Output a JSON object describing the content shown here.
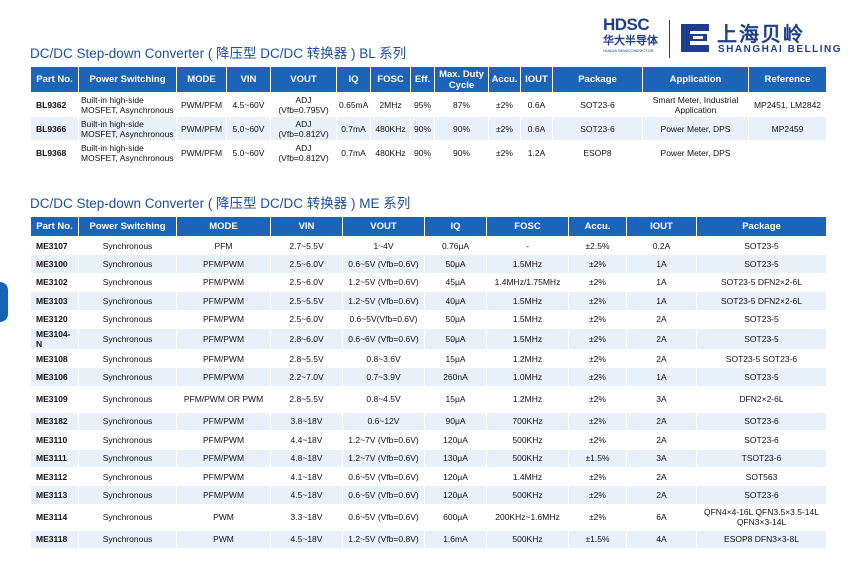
{
  "logo": {
    "hdsc": "HDSC",
    "hdsc_cn": "华大半导体",
    "hdsc_en": "HUADA SEMICONDUCTOR",
    "belling_cn": "上海贝岭",
    "belling_en": "SHANGHAI BELLING"
  },
  "section1": {
    "title": "DC/DC Step-down Converter ( 降压型 DC/DC 转换器 ) BL 系列",
    "headers": [
      "Part No.",
      "Power Switching",
      "MODE",
      "VIN",
      "VOUT",
      "IQ",
      "FOSC",
      "Eff.",
      "Max. Duty Cycle",
      "Accu.",
      "IOUT",
      "Package",
      "Application",
      "Reference"
    ],
    "rows": [
      [
        "BL9362",
        "Built-in high-side MOSFET, Asynchronous",
        "PWM/PFM",
        "4.5~60V",
        "ADJ (Vfb=0.795V)",
        "0.65mA",
        "2MHz",
        "95%",
        "87%",
        "±2%",
        "0.6A",
        "SOT23-6",
        "Smart Meter, Industrial Application",
        "MP2451, LM2842"
      ],
      [
        "BL9366",
        "Built-in high-side MOSFET, Asynchronous",
        "PWM/PFM",
        "5.0~60V",
        "ADJ (Vfb=0.812V)",
        "0.7mA",
        "480KHz",
        "90%",
        "90%",
        "±2%",
        "0.6A",
        "SOT23-6",
        "Power Meter, DPS",
        "MP2459"
      ],
      [
        "BL9368",
        "Built-in high-side MOSFET, Asynchronous",
        "PWM/PFM",
        "5.0~60V",
        "ADJ (Vfb=0.812V)",
        "0.7mA",
        "480KHz",
        "90%",
        "90%",
        "±2%",
        "1.2A",
        "ESOP8",
        "Power Meter, DPS",
        ""
      ]
    ]
  },
  "section2": {
    "title": "DC/DC Step-down Converter ( 降压型 DC/DC 转换器 ) ME 系列",
    "headers": [
      "Part No.",
      "Power Switching",
      "MODE",
      "VIN",
      "VOUT",
      "IQ",
      "FOSC",
      "Accu.",
      "IOUT",
      "Package"
    ],
    "rows": [
      [
        "ME3107",
        "Synchronous",
        "PFM",
        "2.7~5.5V",
        "1~4V",
        "0.76μA",
        "-",
        "±2.5%",
        "0.2A",
        "SOT23-5"
      ],
      [
        "ME3100",
        "Synchronous",
        "PFM/PWM",
        "2.5~6.0V",
        "0.6~5V (Vfb=0.6V)",
        "50μA",
        "1.5MHz",
        "±2%",
        "1A",
        "SOT23-5"
      ],
      [
        "ME3102",
        "Synchronous",
        "PFM/PWM",
        "2.5~6.0V",
        "1.2~5V (Vfb=0.6V)",
        "45μA",
        "1.4MHz/1.75MHz",
        "±2%",
        "1A",
        "SOT23-5 DFN2×2-6L"
      ],
      [
        "ME3103",
        "Synchronous",
        "PFM/PWM",
        "2.5~5.5V",
        "1.2~5V (Vfb=0.6V)",
        "40μA",
        "1.5MHz",
        "±2%",
        "1A",
        "SOT23-5 DFN2×2-6L"
      ],
      [
        "ME3120",
        "Synchronous",
        "PFM/PWM",
        "2.5~6.0V",
        "0.6~5V(Vfb=0.6V)",
        "50μA",
        "1.5MHz",
        "±2%",
        "2A",
        "SOT23-5"
      ],
      [
        "ME3104-N",
        "Synchronous",
        "PFM/PWM",
        "2.8~6.0V",
        "0.6~6V (Vfb=0.6V)",
        "50μA",
        "1.5MHz",
        "±2%",
        "2A",
        "SOT23-5"
      ],
      [
        "ME3108",
        "Synchronous",
        "PFM/PWM",
        "2.8~5.5V",
        "0.8~3.6V",
        "15μA",
        "1.2MHz",
        "±2%",
        "2A",
        "SOT23-5 SOT23-6"
      ],
      [
        "ME3106",
        "Synchronous",
        "PFM/PWM",
        "2.2~7.0V",
        "0.7~3.9V",
        "260nA",
        "1.0MHz",
        "±2%",
        "1A",
        "SOT23-5"
      ],
      [
        "ME3109",
        "Synchronous",
        "PFM/PWM OR PWM",
        "2.8~5.5V",
        "0.8~4.5V",
        "15μA",
        "1.2MHz",
        "±2%",
        "3A",
        "DFN2×2-6L"
      ],
      [
        "ME3182",
        "Synchronous",
        "PFM/PWM",
        "3.8~18V",
        "0.6~12V",
        "90μA",
        "700KHz",
        "±2%",
        "2A",
        "SOT23-6"
      ],
      [
        "ME3110",
        "Synchronous",
        "PFM/PWM",
        "4.4~18V",
        "1.2~7V (Vfb=0.6V)",
        "120μA",
        "500KHz",
        "±2%",
        "2A",
        "SOT23-6"
      ],
      [
        "ME3111",
        "Synchronous",
        "PFM/PWM",
        "4.8~18V",
        "1.2~7V (Vfb=0.6V)",
        "130μA",
        "500KHz",
        "±1.5%",
        "3A",
        "TSOT23-6"
      ],
      [
        "ME3112",
        "Synchronous",
        "PFM/PWM",
        "4.1~18V",
        "0.6~5V (Vfb=0.6V)",
        "120μA",
        "1.4MHz",
        "±2%",
        "2A",
        "SOT563"
      ],
      [
        "ME3113",
        "Synchronous",
        "PFM/PWM",
        "4.5~18V",
        "0.6~5V (Vfb=0.6V)",
        "120μA",
        "500KHz",
        "±2%",
        "2A",
        "SOT23-6"
      ],
      [
        "ME3114",
        "Synchronous",
        "PWM",
        "3.3~18V",
        "0.6~5V (Vfb=0.6V)",
        "600μA",
        "200KHz~1.6MHz",
        "±2%",
        "6A",
        "QFN4×4-16L QFN3.5×3.5-14L QFN3×3-14L"
      ],
      [
        "ME3118",
        "Synchronous",
        "PWM",
        "4.5~18V",
        "1.2~5V (Vfb=0.8V)",
        "1.6mA",
        "500KHz",
        "±1.5%",
        "4A",
        "ESOP8 DFN3×3-8L"
      ]
    ]
  },
  "colors": {
    "header_bg": "#1c64b8",
    "row_alt": "#e8f1fa",
    "title": "#1b4f9c",
    "logo": "#1e3e8c"
  }
}
